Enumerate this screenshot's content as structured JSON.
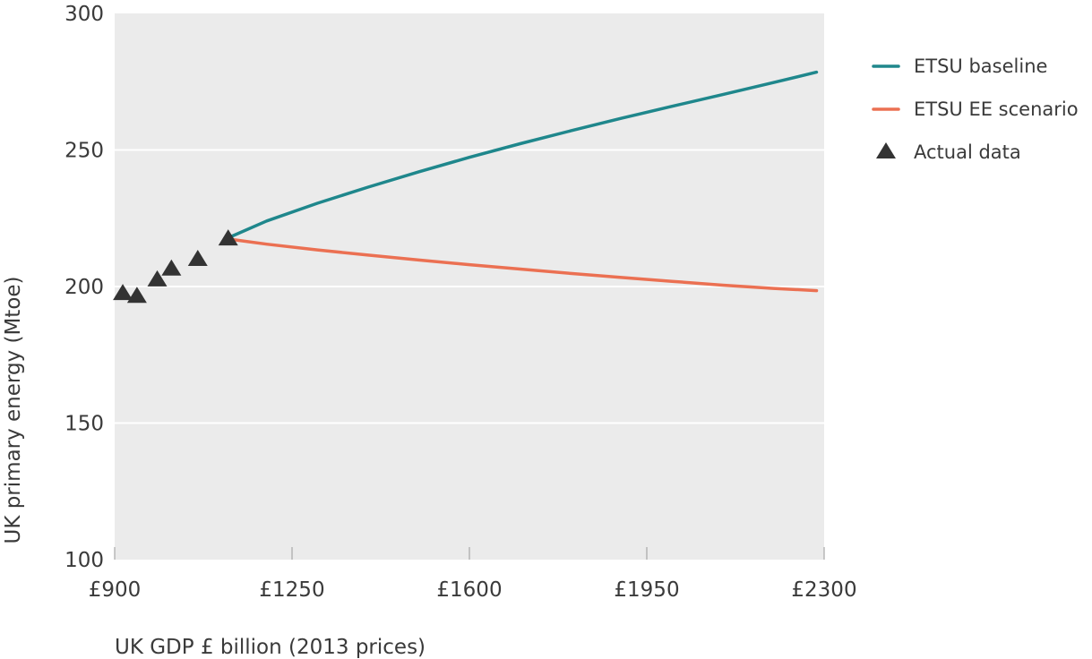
{
  "chart_data": {
    "type": "line",
    "title": "",
    "xlabel": "UK GDP £ billion (2013 prices)",
    "ylabel": "UK primary energy (Mtoe)",
    "xlim": [
      900,
      2300
    ],
    "ylim": [
      100,
      300
    ],
    "x_ticks": [
      900,
      1250,
      1600,
      1950,
      2300
    ],
    "x_tick_labels": [
      "£900",
      "£1250",
      "£1600",
      "£1950",
      "£2300"
    ],
    "y_ticks": [
      100,
      150,
      200,
      250,
      300
    ],
    "y_tick_labels": [
      "100",
      "150",
      "200",
      "250",
      "300"
    ],
    "grid": "horizontal",
    "legend_position": "right",
    "series": [
      {
        "name": "ETSU baseline",
        "kind": "line",
        "color": "#1f878c",
        "x": [
          1120,
          1200,
          1300,
          1400,
          1500,
          1600,
          1700,
          1800,
          1900,
          2000,
          2100,
          2200,
          2285
        ],
        "y": [
          217.5,
          224,
          230.5,
          236.4,
          242,
          247.3,
          252.3,
          257,
          261.6,
          266,
          270.3,
          274.7,
          278.5
        ]
      },
      {
        "name": "ETSU EE scenario",
        "kind": "line",
        "color": "#eb7052",
        "x": [
          1120,
          1200,
          1300,
          1400,
          1500,
          1600,
          1700,
          1800,
          1900,
          2000,
          2100,
          2200,
          2285
        ],
        "y": [
          217.5,
          215.5,
          213.4,
          211.5,
          209.7,
          208,
          206.4,
          204.8,
          203.3,
          201.9,
          200.5,
          199.3,
          198.5
        ]
      },
      {
        "name": "Actual data",
        "kind": "scatter",
        "marker": "triangle",
        "color": "#333333",
        "x": [
          916,
          944,
          984,
          1012,
          1064,
          1124
        ],
        "y": [
          197,
          196,
          202,
          206,
          209.5,
          217
        ]
      }
    ]
  }
}
